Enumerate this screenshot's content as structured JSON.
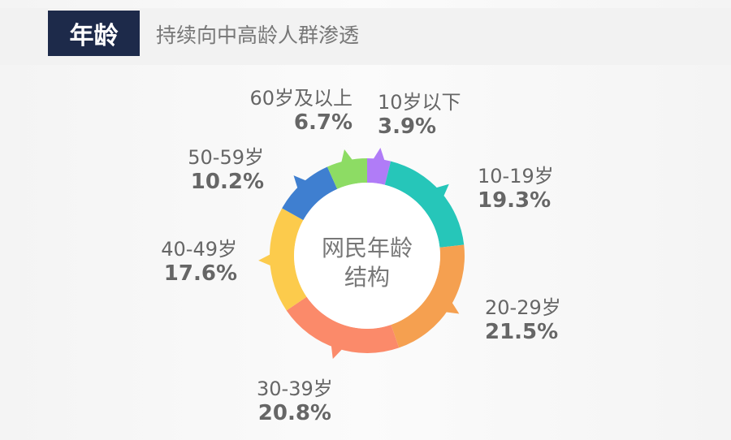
{
  "header": {
    "tag": "年龄",
    "subtitle": "持续向中高龄人群渗透"
  },
  "chart_data": {
    "type": "pie",
    "donut": true,
    "center_label": [
      "网民年龄",
      "结构"
    ],
    "categories": [
      "10岁以下",
      "10-19岁",
      "20-29岁",
      "30-39岁",
      "40-49岁",
      "50-59岁",
      "60岁及以上"
    ],
    "values": [
      3.9,
      19.3,
      21.5,
      20.8,
      17.6,
      10.2,
      6.7
    ],
    "value_labels": [
      "3.9%",
      "19.3%",
      "21.5%",
      "20.8%",
      "17.6%",
      "10.2%",
      "6.7%"
    ],
    "colors": [
      "#b07cf7",
      "#26c6b9",
      "#f5a050",
      "#fb8a6a",
      "#fccb4c",
      "#3f7fd0",
      "#8ddc64"
    ],
    "start": "top",
    "direction": "clockwise"
  }
}
